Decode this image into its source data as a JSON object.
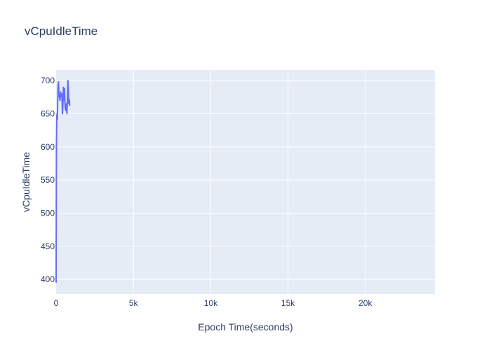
{
  "chart_data": {
    "type": "line",
    "title": "vCpuIdleTime",
    "xlabel": "Epoch Time(seconds)",
    "ylabel": "vCpuIdleTime",
    "xlim": [
      0,
      24500
    ],
    "ylim": [
      378,
      716
    ],
    "x_ticks": [
      0,
      5000,
      10000,
      15000,
      20000
    ],
    "x_tick_labels": [
      "0",
      "5k",
      "10k",
      "15k",
      "20k"
    ],
    "y_ticks": [
      400,
      450,
      500,
      550,
      600,
      650,
      700
    ],
    "y_tick_labels": [
      "400",
      "450",
      "500",
      "550",
      "600",
      "650",
      "700"
    ],
    "grid": true,
    "legend": false,
    "colors": {
      "plot_bg": "#e5ecf6",
      "line": "#636efa",
      "text": "#2a3f5f"
    },
    "series": [
      {
        "x": [
          0,
          20,
          40,
          60,
          80,
          100,
          120,
          150,
          180,
          210,
          250,
          290,
          330,
          370,
          410,
          440,
          470,
          500,
          540,
          580,
          620,
          660,
          700,
          730,
          760,
          790,
          820,
          850,
          880
        ],
        "y": [
          395,
          600,
          645,
          650,
          642,
          665,
          690,
          698,
          680,
          675,
          670,
          683,
          676,
          680,
          650,
          665,
          690,
          670,
          688,
          660,
          655,
          665,
          650,
          672,
          700,
          690,
          665,
          672,
          662
        ]
      }
    ]
  }
}
